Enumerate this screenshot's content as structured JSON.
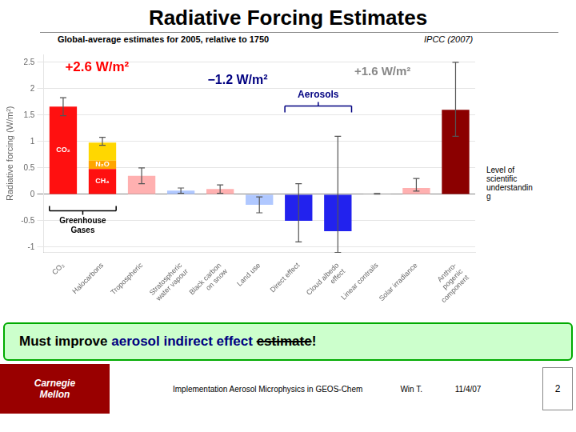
{
  "chart_data": {
    "type": "bar",
    "title": "Radiative Forcing Estimates",
    "subtitle": "Global-average estimates for 2005, relative to 1750",
    "subtitle_italic": "IPCC (2007)",
    "ylabel": "Radiative forcing (W/m²)",
    "categories": [
      "CO₂",
      "Halocarbons",
      "Tropospheric",
      "Stratospheric\nwater vapour",
      "Black carbon\non snow",
      "Land use",
      "Direct effect",
      "Cloud albedo\neffect",
      "Linear contrails",
      "Solar irradiance",
      "Anthro-\npogenic\ncomponent"
    ],
    "stacked": true,
    "series": [
      {
        "values": [
          1.66,
          null,
          0.35,
          0.07,
          0.1,
          -0.2,
          -0.5,
          -0.7,
          0.01,
          0.12,
          1.6
        ],
        "colors": [
          "#FF1010",
          null,
          "#FFB0B0",
          "#B0C8FF",
          "#FFB0B0",
          "#B0C8FF",
          "#2222EE",
          "#2222EE",
          "#C8C8C8",
          "#FFB0B0",
          "#8B0000"
        ],
        "error_low": [
          0.17,
          null,
          0.15,
          0.05,
          0.08,
          0.15,
          0.4,
          0.4,
          0.005,
          0.06,
          0.5
        ],
        "error_high": [
          0.17,
          null,
          0.15,
          0.05,
          0.08,
          0.15,
          0.7,
          1.8,
          0.005,
          0.18,
          0.9
        ],
        "inner_labels": [
          "CO₂",
          null,
          null,
          null,
          null,
          null,
          null,
          null,
          null,
          null,
          null
        ]
      },
      {
        "values": [
          null,
          0.48,
          null,
          null,
          null,
          null,
          null,
          null,
          null,
          null,
          null
        ],
        "color": "#FF1010",
        "inner_labels": [
          null,
          "CH₄",
          null,
          null,
          null,
          null,
          null,
          null,
          null,
          null,
          null
        ]
      },
      {
        "values": [
          null,
          0.16,
          null,
          null,
          null,
          null,
          null,
          null,
          null,
          null,
          null
        ],
        "color": "#FFA500",
        "inner_labels": [
          null,
          "N₂O",
          null,
          null,
          null,
          null,
          null,
          null,
          null,
          null,
          null
        ]
      },
      {
        "values": [
          null,
          0.34,
          null,
          null,
          null,
          null,
          null,
          null,
          null,
          null,
          null
        ],
        "color": "#FFD700",
        "error_low": [
          null,
          0.05,
          null,
          null,
          null,
          null,
          null,
          null,
          null,
          null,
          null
        ],
        "error_high": [
          null,
          0.1,
          null,
          null,
          null,
          null,
          null,
          null,
          null,
          null,
          null
        ]
      }
    ],
    "error_color": "#555555",
    "ylim": [
      -1.1,
      2.65
    ],
    "yticks": [
      -1,
      -0.5,
      0,
      0.5,
      1,
      1.5,
      2,
      2.5
    ],
    "grid": true,
    "annotations": [
      {
        "text": "+2.6 W/m²",
        "color": "#FF0000"
      },
      {
        "text": "+1.6 W/m²",
        "color": "#888888"
      },
      {
        "text": "−1.2 W/m²",
        "color": "#000080"
      }
    ],
    "brackets": [
      {
        "text": "Aerosols",
        "color": "#000080",
        "from": "Direct effect",
        "to": "Cloud albedo\neffect"
      },
      {
        "text": "Greenhouse\nGases",
        "color": "#000000",
        "from": "CO₂",
        "to": "Halocarbons"
      }
    ],
    "side_note": "Level of\nscientific\nunderstandin\ng",
    "banner": {
      "parts": [
        {
          "text": "Must improve ",
          "color": "#000000"
        },
        {
          "text": "aerosol indirect effect ",
          "color": "#000080"
        },
        {
          "text": "estimate",
          "color": "#000000",
          "strike": true
        },
        {
          "text": "!",
          "color": "#000000"
        }
      ],
      "background": "#CCFFCC",
      "border": "#00AA00"
    },
    "footer": {
      "brand": "Carnegie\nMellon",
      "brand_background": "#990000",
      "brand_color": "#FFFFFF",
      "texts": [
        "Implementation Aerosol Microphysics in GEOS-Chem",
        "Win T.",
        "11/4/07"
      ],
      "page": "2"
    },
    "background_color": "#FFFFFF"
  }
}
